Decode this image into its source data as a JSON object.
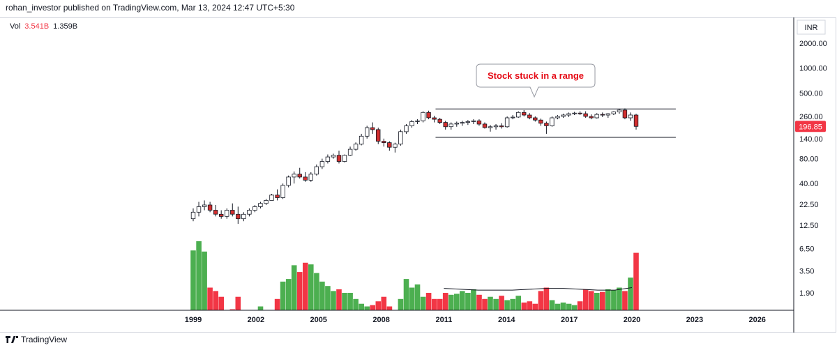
{
  "header": {
    "published": "rohan_investor published on TradingView.com, Mar 13, 2024 12:47 UTC+5:30"
  },
  "volume_legend": {
    "label": "Vol",
    "value_a": "3.541B",
    "value_b": "1.359B"
  },
  "footer": {
    "brand": "TradingView"
  },
  "colors": {
    "up": "#4caf50",
    "down": "#f23645",
    "candle_down": "#d32f2f",
    "accent": "#e50914"
  },
  "chart_data": {
    "type": "candlestick",
    "currency": "INR",
    "price_axis_ticks": [
      "2000.00",
      "1000.00",
      "500.00",
      "260.00",
      "140.00",
      "80.00",
      "40.00",
      "22.50",
      "12.50",
      "6.50",
      "3.50",
      "1.90"
    ],
    "price_axis_values": [
      2000,
      1000,
      500,
      260,
      140,
      80,
      40,
      22.5,
      12.5,
      6.5,
      3.5,
      1.9
    ],
    "time_axis_ticks": [
      "1999",
      "2002",
      "2005",
      "2008",
      "2011",
      "2014",
      "2017",
      "2020",
      "2023",
      "2026"
    ],
    "x_range": [
      1999.0,
      2020.2
    ],
    "last_price": "196.85",
    "annotation": "Stock stuck in a range",
    "range_lines": {
      "upper": 320,
      "lower": 145,
      "from": 2010.6,
      "to": 2022.1
    },
    "candles_open_high_low_close": [
      [
        15,
        20,
        14,
        18
      ],
      [
        18,
        24,
        16,
        21
      ],
      [
        21,
        25,
        19,
        22
      ],
      [
        22,
        24,
        18,
        19
      ],
      [
        19,
        22,
        16,
        17
      ],
      [
        17,
        19,
        15,
        16
      ],
      [
        16,
        20,
        15,
        19
      ],
      [
        19,
        23,
        16,
        17
      ],
      [
        17,
        21,
        13,
        15
      ],
      [
        15,
        18,
        14,
        17
      ],
      [
        17,
        20,
        16,
        19
      ],
      [
        19,
        22,
        18,
        21
      ],
      [
        21,
        24,
        20,
        23
      ],
      [
        23,
        26,
        22,
        25
      ],
      [
        25,
        30,
        25,
        29
      ],
      [
        29,
        34,
        25,
        27
      ],
      [
        27,
        40,
        26,
        38
      ],
      [
        38,
        50,
        36,
        48
      ],
      [
        48,
        56,
        40,
        52
      ],
      [
        52,
        62,
        46,
        48
      ],
      [
        48,
        55,
        42,
        44
      ],
      [
        44,
        55,
        42,
        52
      ],
      [
        52,
        68,
        50,
        64
      ],
      [
        64,
        80,
        60,
        74
      ],
      [
        74,
        90,
        70,
        84
      ],
      [
        84,
        92,
        80,
        88
      ],
      [
        88,
        100,
        70,
        74
      ],
      [
        74,
        90,
        72,
        88
      ],
      [
        88,
        112,
        86,
        104
      ],
      [
        104,
        126,
        100,
        120
      ],
      [
        120,
        160,
        116,
        150
      ],
      [
        150,
        200,
        140,
        190
      ],
      [
        190,
        220,
        160,
        180
      ],
      [
        180,
        190,
        120,
        130
      ],
      [
        130,
        140,
        112,
        125
      ],
      [
        125,
        130,
        100,
        110
      ],
      [
        110,
        125,
        95,
        120
      ],
      [
        120,
        180,
        115,
        170
      ],
      [
        170,
        210,
        160,
        200
      ],
      [
        200,
        235,
        190,
        225
      ],
      [
        225,
        240,
        210,
        230
      ],
      [
        230,
        300,
        220,
        290
      ],
      [
        290,
        305,
        240,
        250
      ],
      [
        250,
        265,
        220,
        240
      ],
      [
        240,
        250,
        210,
        220
      ],
      [
        220,
        230,
        180,
        195
      ],
      [
        195,
        220,
        180,
        210
      ],
      [
        210,
        225,
        195,
        215
      ],
      [
        215,
        230,
        200,
        220
      ],
      [
        220,
        235,
        205,
        225
      ],
      [
        225,
        240,
        210,
        230
      ],
      [
        230,
        240,
        200,
        210
      ],
      [
        210,
        220,
        185,
        190
      ],
      [
        190,
        205,
        170,
        195
      ],
      [
        195,
        210,
        180,
        200
      ],
      [
        200,
        215,
        185,
        195
      ],
      [
        195,
        260,
        190,
        250
      ],
      [
        250,
        270,
        240,
        255
      ],
      [
        255,
        300,
        250,
        290
      ],
      [
        290,
        310,
        260,
        270
      ],
      [
        270,
        285,
        240,
        250
      ],
      [
        250,
        260,
        225,
        235
      ],
      [
        235,
        245,
        200,
        215
      ],
      [
        215,
        225,
        160,
        200
      ],
      [
        200,
        260,
        195,
        250
      ],
      [
        250,
        270,
        240,
        260
      ],
      [
        260,
        280,
        250,
        270
      ],
      [
        270,
        290,
        255,
        280
      ],
      [
        280,
        295,
        270,
        285
      ],
      [
        285,
        300,
        270,
        280
      ],
      [
        280,
        300,
        250,
        260
      ],
      [
        260,
        275,
        240,
        250
      ],
      [
        250,
        285,
        245,
        275
      ],
      [
        275,
        290,
        255,
        270
      ],
      [
        270,
        285,
        250,
        280
      ],
      [
        280,
        300,
        270,
        295
      ],
      [
        295,
        320,
        280,
        310
      ],
      [
        310,
        325,
        240,
        250
      ],
      [
        250,
        290,
        230,
        270
      ],
      [
        270,
        280,
        180,
        196.85
      ]
    ],
    "volume_values_billions": [
      6.2,
      8.0,
      6.0,
      2.2,
      2.0,
      1.7,
      1.1,
      1.2,
      1.7,
      1.1,
      0.9,
      0.8,
      1.3,
      0.85,
      0.9,
      1.6,
      2.6,
      2.8,
      4.1,
      3.4,
      4.4,
      4.2,
      3.3,
      2.6,
      2.3,
      2.0,
      2.1,
      1.9,
      1.9,
      1.6,
      1.4,
      1.3,
      1.35,
      1.5,
      1.7,
      1.3,
      1.1,
      1.6,
      2.8,
      2.2,
      2.4,
      1.7,
      1.9,
      1.6,
      1.6,
      1.9,
      1.8,
      1.85,
      2.0,
      1.9,
      2.1,
      1.8,
      1.6,
      1.7,
      1.6,
      1.75,
      1.55,
      1.6,
      1.75,
      1.45,
      1.5,
      1.4,
      2.0,
      2.2,
      1.55,
      1.4,
      1.45,
      1.4,
      1.35,
      1.5,
      2.1,
      2.0,
      1.9,
      1.95,
      2.1,
      2.05,
      2.2,
      2.0,
      2.9,
      5.8
    ],
    "volume_ma": [
      2.15,
      2.1,
      2.05,
      2.05,
      2.05,
      2.1,
      2.15,
      2.15,
      2.1,
      2.05,
      2.05,
      2.2
    ],
    "volume_ma_from": 2011.0,
    "volume_ma_to": 2020.0
  }
}
